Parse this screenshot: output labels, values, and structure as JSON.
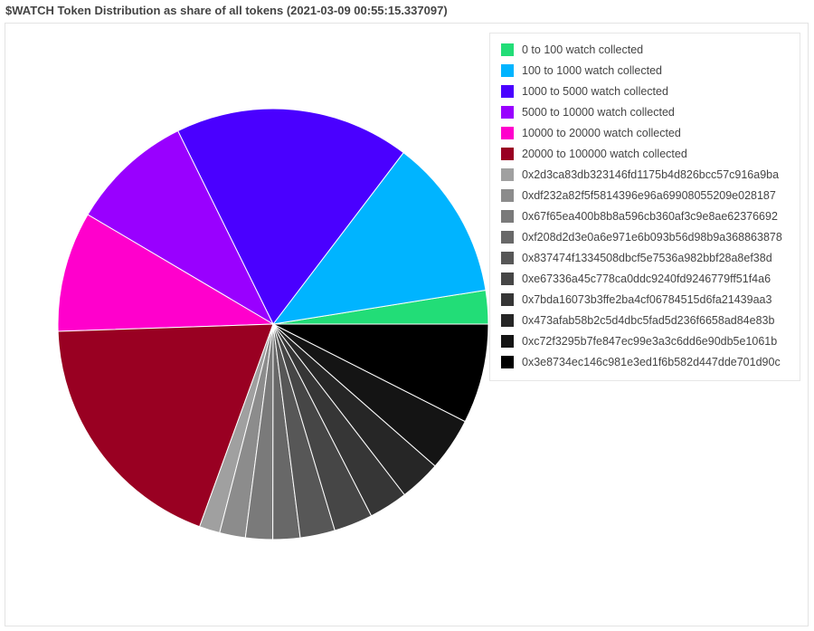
{
  "title": "$WATCH Token Distribution as share of all tokens (2021-03-09 00:55:15.337097)",
  "chart_data": {
    "type": "pie",
    "title": "$WATCH Token Distribution as share of all tokens (2021-03-09 00:55:15.337097)",
    "legend_position": "top-right",
    "slices": [
      {
        "label": "0 to 100 watch collected",
        "value": 2.6,
        "color": "#22dd77"
      },
      {
        "label": "100 to 1000 watch collected",
        "value": 12.5,
        "color": "#00b4ff"
      },
      {
        "label": "1000 to 5000 watch collected",
        "value": 18.2,
        "color": "#4a00ff"
      },
      {
        "label": "5000 to 10000 watch collected",
        "value": 9.5,
        "color": "#9900ff"
      },
      {
        "label": "10000 to 20000 watch collected",
        "value": 9.3,
        "color": "#ff00cc"
      },
      {
        "label": "20000 to 100000 watch collected",
        "value": 19.5,
        "color": "#990022"
      },
      {
        "label": "0x2d3ca83db323146fd1175b4d826bcc57c916a9ba",
        "value": 1.6,
        "color": "#a0a0a0"
      },
      {
        "label": "0xdf232a82f5f5814396e96a69908055209e028187",
        "value": 2.0,
        "color": "#8c8c8c"
      },
      {
        "label": "0x67f65ea400b8b8a596cb360af3c9e8ae62376692",
        "value": 2.1,
        "color": "#7a7a7a"
      },
      {
        "label": "0xf208d2d3e0a6e971e6b093b56d98b9a368863878",
        "value": 2.1,
        "color": "#686868"
      },
      {
        "label": "0x837474f1334508dbcf5e7536a982bbf28a8ef38d",
        "value": 2.7,
        "color": "#575757"
      },
      {
        "label": "0xe67336a45c778ca0ddc9240fd9246779ff51f4a6",
        "value": 3.0,
        "color": "#464646"
      },
      {
        "label": "0x7bda16073b3ffe2ba4cf06784515d6fa21439aa3",
        "value": 3.0,
        "color": "#363636"
      },
      {
        "label": "0x473afab58b2c5d4dbc5fad5d236f6658ad84e83b",
        "value": 3.2,
        "color": "#262626"
      },
      {
        "label": "0xc72f3295b7fe847ec99e3a3c6dd6e90db5e1061b",
        "value": 4.1,
        "color": "#141414"
      },
      {
        "label": "0x3e8734ec146c981e3ed1f6b582d447dde701d90c",
        "value": 7.7,
        "color": "#000000"
      }
    ]
  }
}
